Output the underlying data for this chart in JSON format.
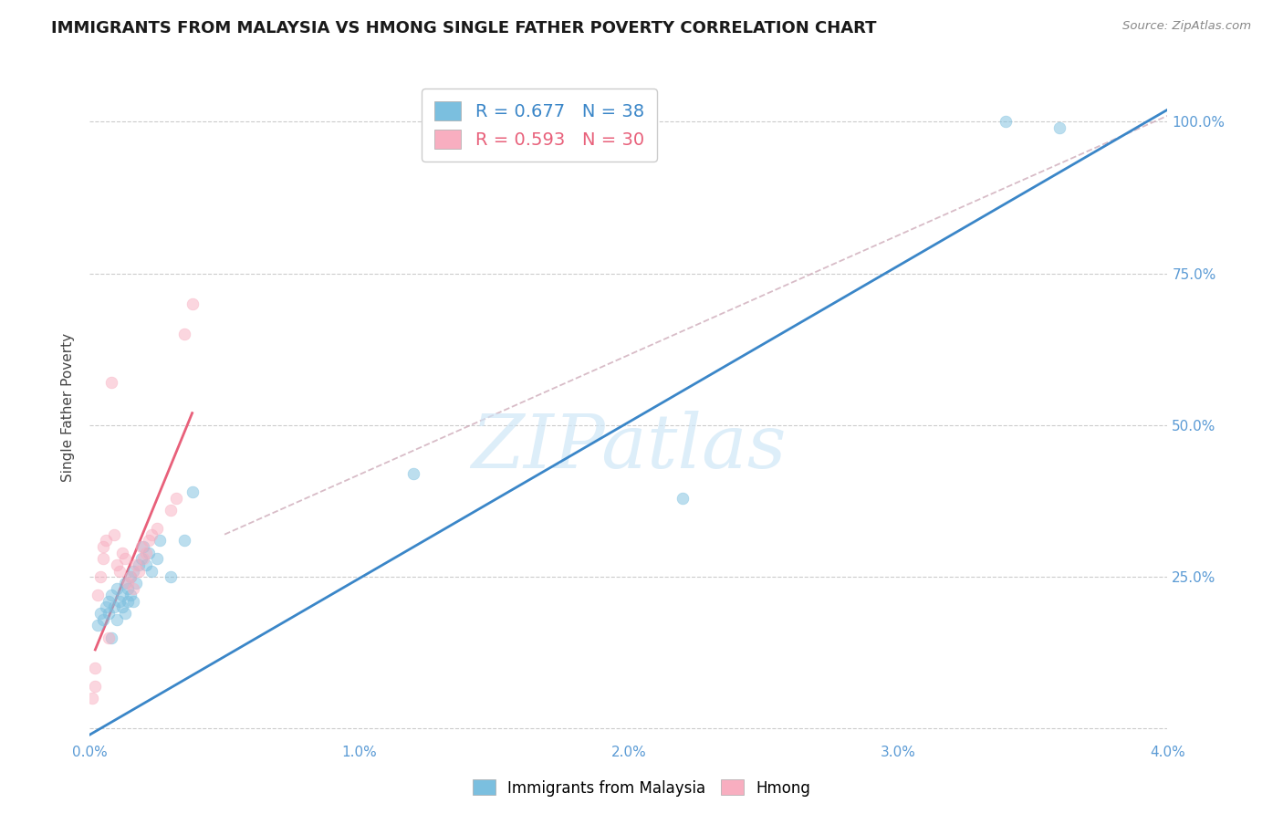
{
  "title": "IMMIGRANTS FROM MALAYSIA VS HMONG SINGLE FATHER POVERTY CORRELATION CHART",
  "source": "Source: ZipAtlas.com",
  "ylabel": "Single Father Poverty",
  "xlim": [
    0.0,
    0.04
  ],
  "ylim": [
    -0.02,
    1.08
  ],
  "yticks": [
    0.0,
    0.25,
    0.5,
    0.75,
    1.0
  ],
  "ytick_labels": [
    "",
    "25.0%",
    "50.0%",
    "75.0%",
    "100.0%"
  ],
  "xticks": [
    0.0,
    0.01,
    0.02,
    0.03,
    0.04
  ],
  "xtick_labels": [
    "0.0%",
    "1.0%",
    "2.0%",
    "3.0%",
    "4.0%"
  ],
  "legend_x_bottom_labels": [
    "Immigrants from Malaysia",
    "Hmong"
  ],
  "blue_R": 0.677,
  "blue_N": 38,
  "pink_R": 0.593,
  "pink_N": 30,
  "blue_color": "#7bbfdf",
  "pink_color": "#f8aec0",
  "blue_line_color": "#3a86c8",
  "pink_line_color": "#e8607a",
  "axis_color": "#5b9bd5",
  "watermark": "ZIPatlas",
  "blue_scatter_x": [
    0.0003,
    0.0004,
    0.0005,
    0.0006,
    0.0007,
    0.0007,
    0.0008,
    0.0008,
    0.0009,
    0.001,
    0.001,
    0.0011,
    0.0012,
    0.0012,
    0.0013,
    0.0013,
    0.0014,
    0.0014,
    0.0015,
    0.0015,
    0.0016,
    0.0016,
    0.0017,
    0.0018,
    0.0019,
    0.002,
    0.0021,
    0.0022,
    0.0023,
    0.0025,
    0.0026,
    0.003,
    0.0035,
    0.0038,
    0.012,
    0.022,
    0.034,
    0.036
  ],
  "blue_scatter_y": [
    0.17,
    0.19,
    0.18,
    0.2,
    0.19,
    0.21,
    0.15,
    0.22,
    0.2,
    0.18,
    0.23,
    0.21,
    0.2,
    0.22,
    0.19,
    0.24,
    0.21,
    0.23,
    0.22,
    0.25,
    0.21,
    0.26,
    0.24,
    0.27,
    0.28,
    0.3,
    0.27,
    0.29,
    0.26,
    0.28,
    0.31,
    0.25,
    0.31,
    0.39,
    0.42,
    0.38,
    1.0,
    0.99
  ],
  "pink_scatter_x": [
    0.0001,
    0.0002,
    0.0002,
    0.0003,
    0.0004,
    0.0005,
    0.0005,
    0.0006,
    0.0007,
    0.0008,
    0.0009,
    0.001,
    0.0011,
    0.0012,
    0.0013,
    0.0014,
    0.0015,
    0.0016,
    0.0017,
    0.0018,
    0.0019,
    0.002,
    0.0021,
    0.0022,
    0.0023,
    0.0025,
    0.003,
    0.0032,
    0.0035,
    0.0038
  ],
  "pink_scatter_y": [
    0.05,
    0.1,
    0.07,
    0.22,
    0.25,
    0.28,
    0.3,
    0.31,
    0.15,
    0.57,
    0.32,
    0.27,
    0.26,
    0.29,
    0.28,
    0.24,
    0.25,
    0.23,
    0.27,
    0.26,
    0.3,
    0.28,
    0.29,
    0.31,
    0.32,
    0.33,
    0.36,
    0.38,
    0.65,
    0.7
  ],
  "blue_line_x0": 0.0,
  "blue_line_x1": 0.04,
  "blue_line_y0": -0.01,
  "blue_line_y1": 1.02,
  "pink_line_x0": 0.0002,
  "pink_line_x1": 0.0038,
  "pink_line_y0": 0.13,
  "pink_line_y1": 0.52,
  "ref_line_x0": 0.005,
  "ref_line_x1": 0.04,
  "ref_line_y0": 0.32,
  "ref_line_y1": 1.01,
  "background_color": "#ffffff",
  "grid_color": "#cccccc",
  "title_fontsize": 13,
  "axis_label_fontsize": 11,
  "tick_fontsize": 11,
  "scatter_size": 85,
  "scatter_alpha": 0.5
}
